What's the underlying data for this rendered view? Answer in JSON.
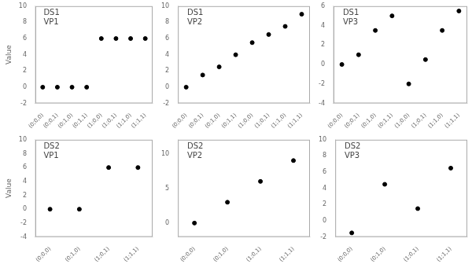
{
  "chart_data": [
    {
      "type": "scatter",
      "ylabel": "Value",
      "annotations": [
        "DS1",
        "VP1"
      ],
      "categories": [
        "(0;0,0)",
        "(0;0,1)",
        "(0;1,0)",
        "(0;1,1)",
        "(1;0,0)",
        "(1;0,1)",
        "(1;1,0)",
        "(1;1,1)"
      ],
      "values": [
        0,
        0,
        0,
        0,
        6,
        6,
        6,
        6
      ],
      "color": "black",
      "ylim": [
        -2,
        10
      ],
      "yticks": [
        -2,
        0,
        2,
        4,
        6,
        8,
        10
      ],
      "grid": false
    },
    {
      "type": "scatter",
      "annotations": [
        "DS1",
        "VP2"
      ],
      "categories": [
        "(0;0,0)",
        "(0;0,1)",
        "(0;1,0)",
        "(0;1,1)",
        "(1;0,0)",
        "(1;0,1)",
        "(1;1,0)",
        "(1;1,1)"
      ],
      "values": [
        0,
        1.5,
        2.5,
        4.0,
        5.5,
        6.5,
        7.5,
        9.0
      ],
      "color": "black",
      "ylim": [
        -2,
        10
      ],
      "yticks": [
        -2,
        0,
        2,
        4,
        6,
        8,
        10
      ],
      "grid": false
    },
    {
      "type": "scatter",
      "annotations": [
        "DS1",
        "VP3"
      ],
      "categories": [
        "(0;0,0)",
        "(0;0,1)",
        "(0;1,0)",
        "(0;1,1)",
        "(1;0,0)",
        "(1;0,1)",
        "(1;1,0)",
        "(1;1,1)"
      ],
      "values": [
        0,
        1.0,
        3.5,
        5.0,
        -2.0,
        0.5,
        3.5,
        5.5
      ],
      "color": "black",
      "ylim": [
        -4,
        6
      ],
      "yticks": [
        -4,
        -2,
        0,
        2,
        4,
        6
      ],
      "grid": false
    },
    {
      "type": "scatter",
      "ylabel": "Value",
      "annotations": [
        "DS2",
        "VP1"
      ],
      "categories": [
        "(0;0,0)",
        "(0;1,0)",
        "(1;0,1)",
        "(1;1,1)"
      ],
      "values": [
        0,
        0,
        6,
        6
      ],
      "color": "black",
      "ylim": [
        -4,
        10
      ],
      "yticks": [
        -4,
        -2,
        0,
        2,
        4,
        6,
        8,
        10
      ],
      "grid": false
    },
    {
      "type": "scatter",
      "annotations": [
        "DS2",
        "VP2"
      ],
      "categories": [
        "(0;0,0)",
        "(0;1,0)",
        "(1;0,1)",
        "(1;1,1)"
      ],
      "values": [
        0,
        3.0,
        6.0,
        9.0
      ],
      "color": "black",
      "ylim": [
        -2,
        12
      ],
      "yticks": [
        0,
        5,
        10
      ],
      "grid": false
    },
    {
      "type": "scatter",
      "annotations": [
        "DS2",
        "VP3"
      ],
      "categories": [
        "(0;0,0)",
        "(0;1,0)",
        "(1;0,1)",
        "(1;1,1)"
      ],
      "values": [
        -1.5,
        4.5,
        1.5,
        6.5
      ],
      "color": "black",
      "ylim": [
        -2,
        10
      ],
      "yticks": [
        -2,
        0,
        2,
        4,
        6,
        8,
        10
      ],
      "grid": false
    }
  ]
}
